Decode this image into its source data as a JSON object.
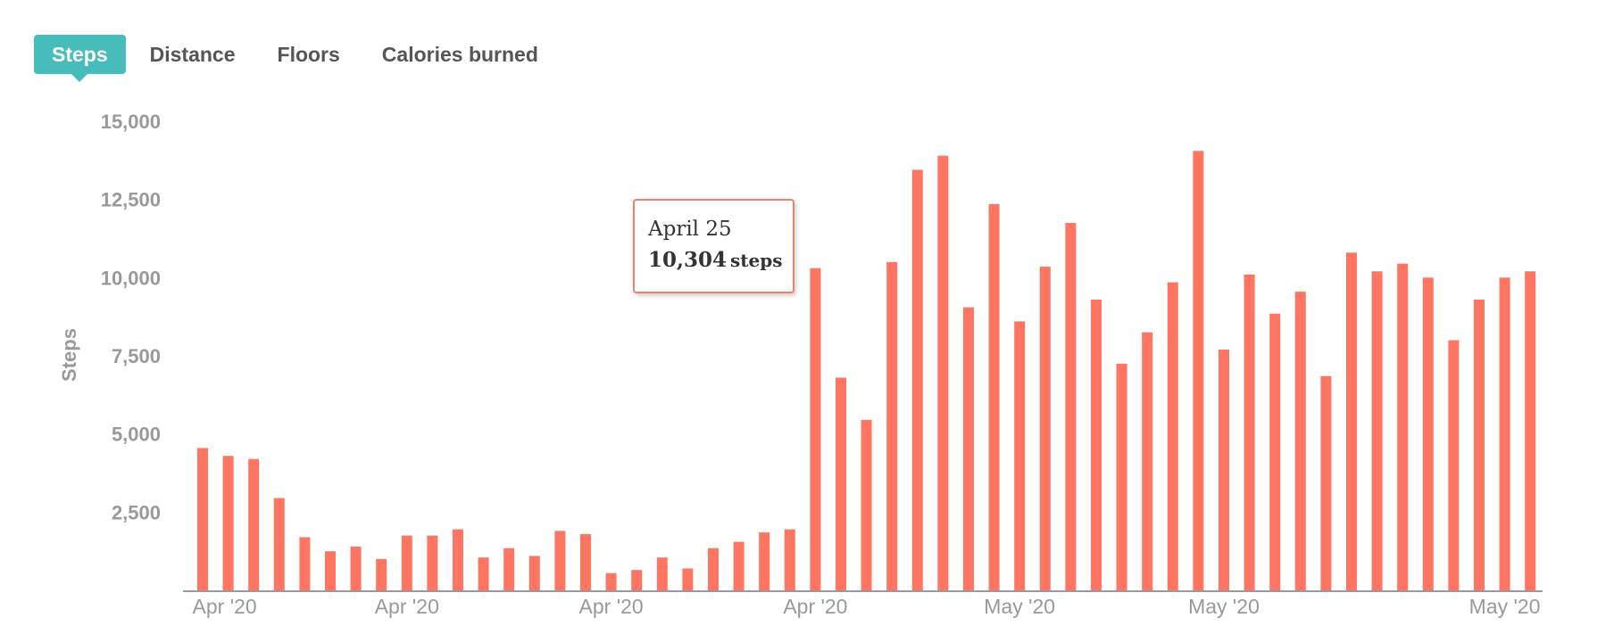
{
  "tabs": [
    {
      "label": "Steps",
      "active": true
    },
    {
      "label": "Distance",
      "active": false
    },
    {
      "label": "Floors",
      "active": false
    },
    {
      "label": "Calories burned",
      "active": false
    }
  ],
  "colors": {
    "bar": "#fe7561",
    "accent": "#46bdbb",
    "axis_text": "#999999"
  },
  "tooltip": {
    "date": "April 25",
    "value": "10,304",
    "unit": "steps"
  },
  "chart_data": {
    "type": "bar",
    "title": "",
    "xlabel": "",
    "ylabel": "Steps",
    "ylim": [
      0,
      15000
    ],
    "yticks": [
      "2,500",
      "5,000",
      "7,500",
      "10,000",
      "12,500",
      "15,000"
    ],
    "yticks_values": [
      2500,
      5000,
      7500,
      10000,
      12500,
      15000
    ],
    "xtick_labels": [
      {
        "label": "Apr '20",
        "index": 1
      },
      {
        "label": "Apr '20",
        "index": 8
      },
      {
        "label": "Apr '20",
        "index": 16
      },
      {
        "label": "Apr '20",
        "index": 24
      },
      {
        "label": "May '20",
        "index": 32
      },
      {
        "label": "May '20",
        "index": 40
      },
      {
        "label": "May '20",
        "index": 51
      }
    ],
    "grid": false,
    "series": [
      {
        "values": [
          4550,
          4300,
          4200,
          2950,
          1700,
          1250,
          1400,
          1000,
          1750,
          1750,
          1950,
          1050,
          1350,
          1100,
          1900,
          1800,
          550,
          650,
          1050,
          700,
          1350,
          1550,
          1850,
          1950,
          10304,
          6800,
          5450,
          10500,
          13450,
          13900,
          9050,
          12350,
          8600,
          10350,
          11750,
          9300,
          7250,
          8250,
          9850,
          14050,
          7700,
          10100,
          8850,
          9550,
          6850,
          10800,
          10200,
          10450,
          10000,
          8000,
          9300,
          10000,
          10200
        ]
      }
    ]
  }
}
